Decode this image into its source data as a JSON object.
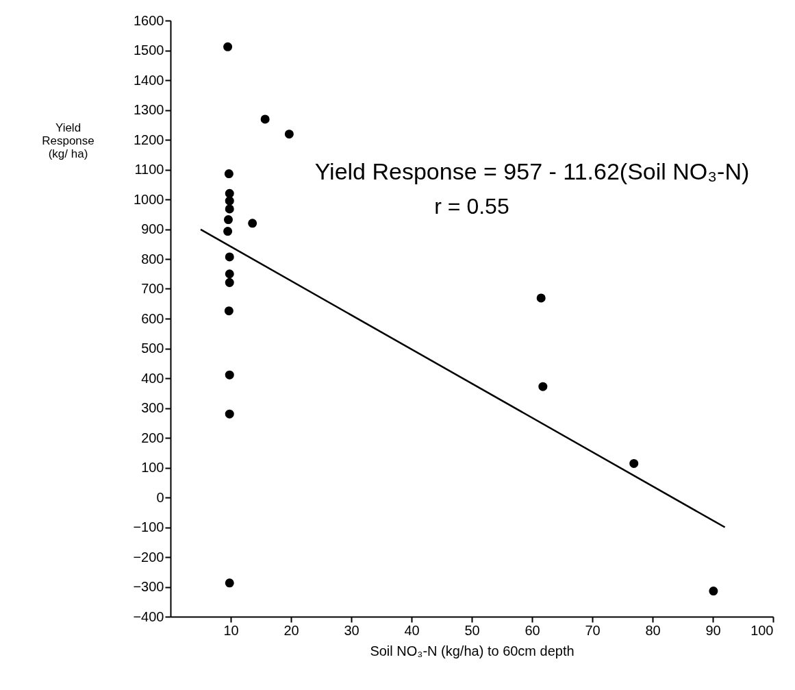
{
  "chart_data": {
    "type": "scatter",
    "xlabel": "Soil NO₃-N (kg/ha) to 60cm depth",
    "ylabel": "Yield Response (kg/ ha)",
    "annotations": [
      "Yield Response = 957 - 11.62(Soil NO₃-N)",
      "r = 0.55"
    ],
    "series": [
      {
        "color": "#000000",
        "x": [
          9.5,
          15.7,
          19.7,
          9.7,
          9.8,
          9.8,
          9.8,
          9.6,
          9.5,
          13.6,
          9.8,
          9.8,
          9.8,
          9.7,
          9.8,
          9.8,
          9.8,
          61.5,
          61.8,
          76.9,
          90.1
        ],
        "values": [
          1512,
          1269,
          1219,
          1086,
          1020,
          995,
          968,
          932,
          893,
          920,
          807,
          750,
          721,
          626,
          411,
          280,
          -287,
          669,
          372,
          114,
          -314
        ]
      },
      {
        "type": "line",
        "color": "#000000",
        "marker": "none",
        "x": [
          5,
          92
        ],
        "values": [
          899,
          -100
        ]
      }
    ],
    "xlim": [
      0,
      100
    ],
    "xticks": [
      10,
      20,
      30,
      40,
      50,
      60,
      70,
      80,
      90,
      100
    ],
    "ylim": [
      -400,
      1600
    ],
    "yticks": [
      -400,
      -300,
      -200,
      -100,
      0,
      100,
      200,
      300,
      400,
      500,
      600,
      700,
      800,
      900,
      1000,
      1100,
      1200,
      1300,
      1400,
      1500,
      1600
    ],
    "grid": false,
    "marker": "circle",
    "line_style": "solid"
  }
}
